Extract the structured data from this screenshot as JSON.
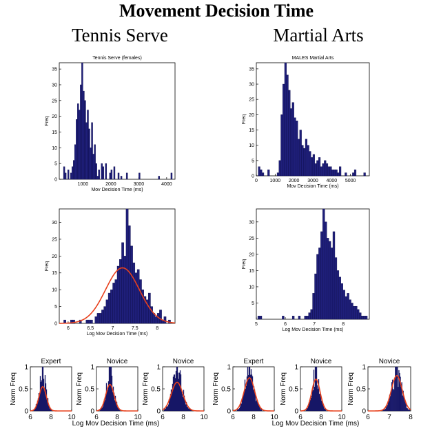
{
  "figure": {
    "title": "Movement Decision Time",
    "col_headers": [
      "Tennis Serve",
      "Martial Arts"
    ]
  },
  "chart_data": [
    {
      "id": "tennis-raw",
      "type": "bar",
      "title": "Tennis Serve (females)",
      "xlabel": "Mov Decision Time (ms)",
      "ylabel": "Freq",
      "xlim": [
        150,
        4300
      ],
      "ylim": [
        0,
        37
      ],
      "xticks": [
        1000,
        2000,
        3000,
        4000
      ],
      "yticks": [
        0,
        5,
        10,
        15,
        20,
        25,
        30,
        35
      ],
      "bin_start": 300,
      "bin_width": 50,
      "values": [
        4,
        2,
        0,
        3,
        0,
        2,
        4,
        6,
        11,
        19,
        24,
        22,
        30,
        37,
        28,
        25,
        18,
        22,
        16,
        10,
        18,
        8,
        11,
        5,
        1,
        3,
        0,
        5,
        4,
        0,
        5,
        0,
        0,
        2,
        3,
        0,
        4,
        0,
        0,
        2,
        0,
        1,
        0,
        0,
        0,
        2,
        0,
        0,
        0,
        0,
        0,
        0,
        0,
        0,
        2,
        0,
        0,
        0,
        0,
        0,
        0,
        0,
        0,
        0,
        0,
        0,
        0,
        0,
        1,
        0,
        0,
        0,
        0,
        0,
        0,
        0,
        0,
        2
      ]
    },
    {
      "id": "martial-raw",
      "type": "bar",
      "title": "MALES Martial Arts",
      "xlabel": "Mov Decision Time (ms)",
      "ylabel": "Freq",
      "xlim": [
        0,
        6000
      ],
      "ylim": [
        0,
        37
      ],
      "xticks": [
        0,
        1000,
        2000,
        3000,
        4000,
        5000
      ],
      "yticks": [
        0,
        5,
        10,
        15,
        20,
        25,
        30,
        35
      ],
      "bin_start": 100,
      "bin_width": 100,
      "values": [
        3,
        2,
        1,
        0,
        0,
        2,
        0,
        0,
        0,
        0,
        1,
        5,
        20,
        30,
        37,
        33,
        28,
        22,
        24,
        19,
        18,
        12,
        15,
        10,
        9,
        12,
        10,
        8,
        6,
        7,
        4,
        5,
        6,
        3,
        4,
        5,
        4,
        3,
        3,
        2,
        2,
        2,
        1,
        3,
        0,
        0,
        1,
        0,
        0,
        0,
        1,
        2,
        0,
        0,
        0,
        0,
        1
      ]
    },
    {
      "id": "tennis-log",
      "type": "bar",
      "title": "",
      "xlabel": "Log Mov Decision Time (ms)",
      "ylabel": "Freq",
      "xlim": [
        5.8,
        8.4
      ],
      "ylim": [
        0,
        34
      ],
      "xticks": [
        6,
        6.5,
        7,
        7.5,
        8
      ],
      "yticks": [
        0,
        5,
        10,
        15,
        20,
        25,
        30
      ],
      "bin_start": 5.9,
      "bin_width": 0.05,
      "values": [
        1,
        0,
        0,
        1,
        1,
        0,
        0,
        1,
        0,
        0,
        1,
        1,
        1,
        0,
        2,
        3,
        3,
        4,
        5,
        7,
        9,
        10,
        12,
        13,
        17,
        19,
        24,
        20,
        34,
        29,
        23,
        18,
        15,
        16,
        13,
        10,
        8,
        7,
        9,
        5,
        3,
        2,
        3,
        4,
        1,
        2,
        0,
        1,
        0,
        0
      ],
      "fit": {
        "type": "normal",
        "mu": 7.22,
        "sigma": 0.38,
        "peak": 16.5
      }
    },
    {
      "id": "martial-log",
      "type": "bar",
      "title": "",
      "xlabel": "Log Mov Decision Time (ms)",
      "ylabel": "Freq",
      "xlim": [
        5,
        8.9
      ],
      "ylim": [
        0,
        34
      ],
      "xticks": [
        5,
        6,
        7,
        8
      ],
      "yticks": [
        5,
        10,
        15,
        20,
        25,
        30
      ],
      "bin_start": 5.05,
      "bin_width": 0.07,
      "values": [
        1,
        1,
        0,
        0,
        0,
        0,
        0,
        0,
        0,
        0,
        0,
        0,
        1,
        0,
        0,
        0,
        0,
        1,
        0,
        0,
        1,
        0,
        0,
        1,
        1,
        2,
        3,
        8,
        14,
        20,
        22,
        27,
        35,
        30,
        25,
        24,
        22,
        27,
        19,
        15,
        13,
        11,
        9,
        7,
        8,
        6,
        5,
        4,
        4,
        3,
        2,
        1,
        1,
        1
      ]
    },
    {
      "id": "tennis-expert",
      "type": "bar",
      "group": "tennis",
      "title": "Expert",
      "xlim": [
        6,
        10
      ],
      "ylim": [
        0,
        1
      ],
      "xticks": [
        6,
        8,
        10
      ],
      "yticks": [
        0,
        0.5,
        1
      ],
      "ylabel": "Norm Freq",
      "mu": 7.2,
      "sigma": 0.35,
      "fit_peak": 0.55,
      "bar_peak": 1.0
    },
    {
      "id": "tennis-novice-1",
      "type": "bar",
      "group": "tennis",
      "title": "Novice",
      "xlim": [
        6,
        10
      ],
      "ylim": [
        0,
        1
      ],
      "xticks": [
        6,
        8,
        10
      ],
      "yticks": [
        0,
        0.5,
        1
      ],
      "ylabel": "Norm Freq",
      "mu": 7.3,
      "sigma": 0.4,
      "fit_peak": 0.6,
      "bar_peak": 1.0
    },
    {
      "id": "tennis-novice-2",
      "type": "bar",
      "group": "tennis",
      "title": "Novice",
      "xlim": [
        6,
        10
      ],
      "ylim": [
        0,
        1
      ],
      "xticks": [
        6,
        8,
        10
      ],
      "yticks": [
        0,
        0.5,
        1
      ],
      "ylabel": "Norm Freq",
      "mu": 7.4,
      "sigma": 0.55,
      "fit_peak": 0.65,
      "bar_peak": 1.0
    },
    {
      "id": "martial-expert",
      "type": "bar",
      "group": "martial",
      "title": "Expert",
      "xlim": [
        6,
        10
      ],
      "ylim": [
        0,
        1
      ],
      "xticks": [
        6,
        8,
        10
      ],
      "yticks": [
        0,
        0.5,
        1
      ],
      "ylabel": "Norm Freq",
      "mu": 7.6,
      "sigma": 0.5,
      "fit_peak": 0.75,
      "bar_peak": 1.0
    },
    {
      "id": "martial-novice-1",
      "type": "bar",
      "group": "martial",
      "title": "Novice",
      "xlim": [
        6,
        10
      ],
      "ylim": [
        0,
        1
      ],
      "xticks": [
        6,
        8,
        10
      ],
      "yticks": [
        0,
        0.5,
        1
      ],
      "ylabel": "Norm Freq",
      "mu": 7.5,
      "sigma": 0.4,
      "fit_peak": 0.72,
      "bar_peak": 1.0
    },
    {
      "id": "martial-novice-2",
      "type": "bar",
      "group": "martial",
      "title": "Novice",
      "xlim": [
        6,
        8
      ],
      "ylim": [
        0,
        1
      ],
      "xticks": [
        6,
        7,
        8
      ],
      "yticks": [
        0,
        0.5,
        1
      ],
      "ylabel": "Norm Freq",
      "mu": 7.35,
      "sigma": 0.25,
      "fit_peak": 0.8,
      "bar_peak": 1.0
    }
  ],
  "bottom_xlabel": "Log Mov Decision Time (ms)",
  "colors": {
    "bar": "#1f1f7a",
    "bar_edge": "#0c0c4a",
    "fit": "#e8401c",
    "axis": "#000000"
  }
}
